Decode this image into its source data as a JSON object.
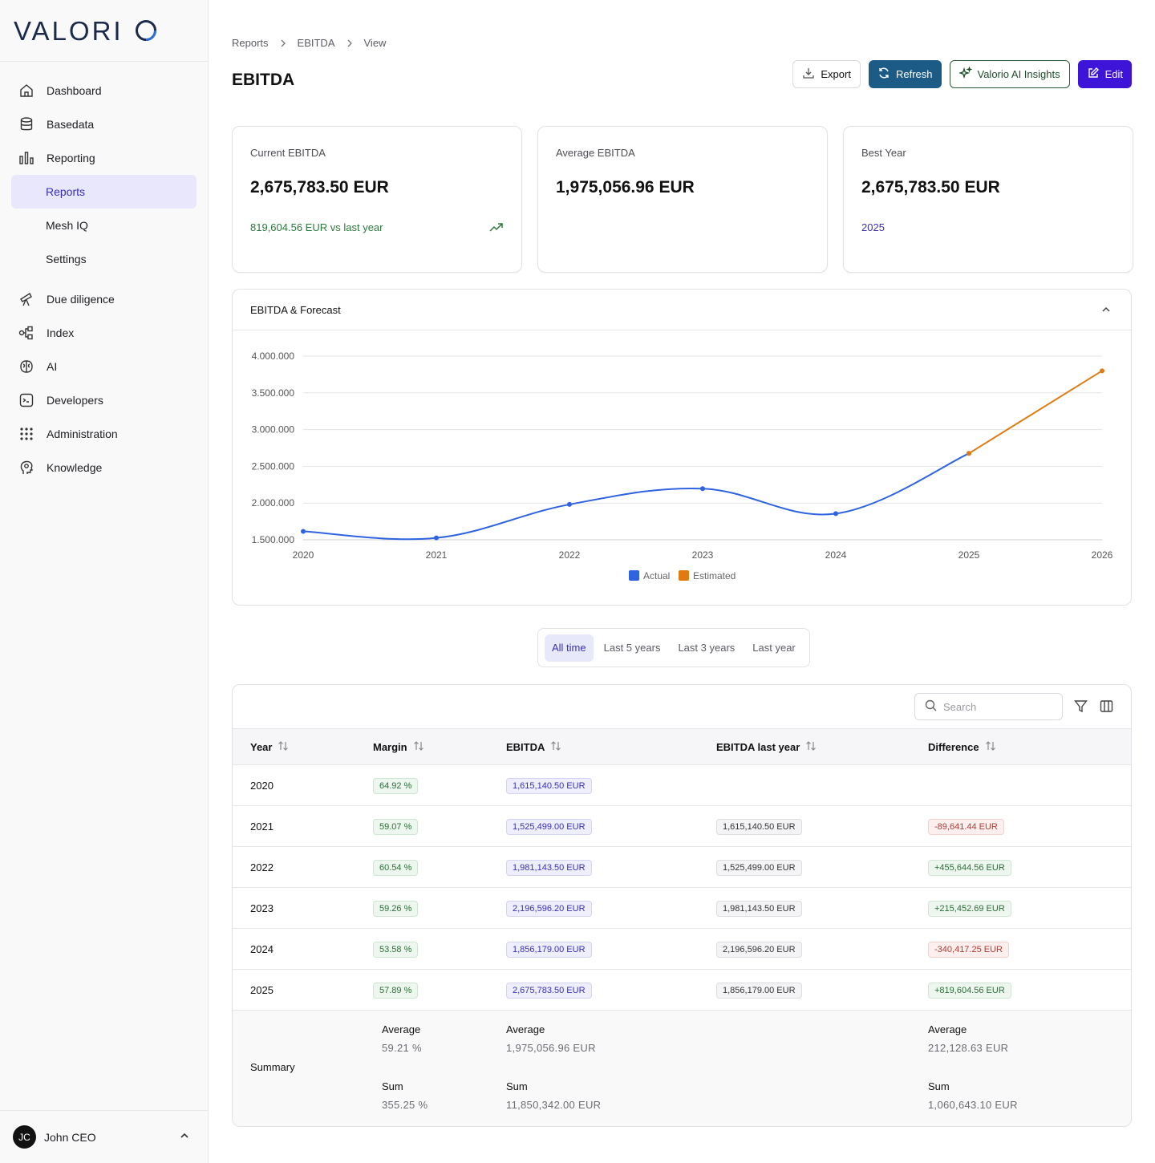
{
  "app": {
    "logo": "VALORIO"
  },
  "sidebar": {
    "items": [
      {
        "label": "Dashboard",
        "icon": "home-icon"
      },
      {
        "label": "Basedata",
        "icon": "database-icon"
      },
      {
        "label": "Reporting",
        "icon": "bar-chart-icon"
      },
      {
        "label": "Reports",
        "active": true
      },
      {
        "label": "Mesh IQ"
      },
      {
        "label": "Settings"
      },
      {
        "label": "Due diligence",
        "icon": "telescope-icon"
      },
      {
        "label": "Index",
        "icon": "network-icon"
      },
      {
        "label": "AI",
        "icon": "brain-icon"
      },
      {
        "label": "Developers",
        "icon": "terminal-icon"
      },
      {
        "label": "Administration",
        "icon": "grid-icon"
      },
      {
        "label": "Knowledge",
        "icon": "head-icon"
      }
    ],
    "user": {
      "initials": "JC",
      "name": "John CEO"
    }
  },
  "breadcrumb": [
    "Reports",
    "EBITDA",
    "View"
  ],
  "page": {
    "title": "EBITDA"
  },
  "toolbar": {
    "export_label": "Export",
    "refresh_label": "Refresh",
    "ai_label": "Valorio AI Insights",
    "edit_label": "Edit"
  },
  "kpis": [
    {
      "label": "Current EBITDA",
      "value": "2,675,783.50 EUR",
      "foot": "819,604.56 EUR vs last year"
    },
    {
      "label": "Average EBITDA",
      "value": "1,975,056.96 EUR",
      "foot": ""
    },
    {
      "label": "Best Year",
      "value": "2,675,783.50 EUR",
      "foot": "2025"
    }
  ],
  "chart_card": {
    "title": "EBITDA & Forecast"
  },
  "chart_data": {
    "type": "line",
    "x": [
      "2020",
      "2021",
      "2022",
      "2023",
      "2024",
      "2025",
      "2026"
    ],
    "y_ticks": [
      "1.500.000",
      "2.000.000",
      "2.500.000",
      "3.000.000",
      "3.500.000",
      "4.000.000"
    ],
    "ylim": [
      1500000,
      4000000
    ],
    "series": [
      {
        "name": "Actual",
        "color": "#2f63e0",
        "x": [
          "2020",
          "2021",
          "2022",
          "2023",
          "2024",
          "2025"
        ],
        "values": [
          1615140.5,
          1525499.0,
          1981143.5,
          2196596.2,
          1856179.0,
          2675783.5
        ]
      },
      {
        "name": "Estimated",
        "color": "#e07b12",
        "x": [
          "2025",
          "2026"
        ],
        "values": [
          2675783.5,
          3800000
        ]
      }
    ],
    "legend": "bottom-center",
    "grid": true
  },
  "range_tabs": [
    {
      "label": "All time",
      "active": true
    },
    {
      "label": "Last 5 years"
    },
    {
      "label": "Last 3 years"
    },
    {
      "label": "Last year"
    }
  ],
  "table": {
    "search_placeholder": "Search",
    "columns": [
      "Year",
      "Margin",
      "EBITDA",
      "EBITDA last year",
      "Difference"
    ],
    "rows": [
      {
        "year": "2020",
        "margin": "64.92 %",
        "ebitda": "1,615,140.50 EUR",
        "last": "",
        "diff": "",
        "diff_sign": ""
      },
      {
        "year": "2021",
        "margin": "59.07 %",
        "ebitda": "1,525,499.00 EUR",
        "last": "1,615,140.50 EUR",
        "diff": "-89,641.44 EUR",
        "diff_sign": "neg"
      },
      {
        "year": "2022",
        "margin": "60.54 %",
        "ebitda": "1,981,143.50 EUR",
        "last": "1,525,499.00 EUR",
        "diff": "+455,644.56 EUR",
        "diff_sign": "pos"
      },
      {
        "year": "2023",
        "margin": "59.26 %",
        "ebitda": "2,196,596.20 EUR",
        "last": "1,981,143.50 EUR",
        "diff": "+215,452.69 EUR",
        "diff_sign": "pos"
      },
      {
        "year": "2024",
        "margin": "53.58 %",
        "ebitda": "1,856,179.00 EUR",
        "last": "2,196,596.20 EUR",
        "diff": "-340,417.25 EUR",
        "diff_sign": "neg"
      },
      {
        "year": "2025",
        "margin": "57.89 %",
        "ebitda": "2,675,783.50 EUR",
        "last": "1,856,179.00 EUR",
        "diff": "+819,604.56 EUR",
        "diff_sign": "pos"
      }
    ],
    "summary": {
      "label": "Summary",
      "average_label": "Average",
      "sum_label": "Sum",
      "margin_avg": "59.21 %",
      "margin_sum": "355.25 %",
      "ebitda_avg": "1,975,056.96 EUR",
      "ebitda_sum": "11,850,342.00 EUR",
      "diff_avg": "212,128.63 EUR",
      "diff_sum": "1,060,643.10 EUR"
    }
  }
}
